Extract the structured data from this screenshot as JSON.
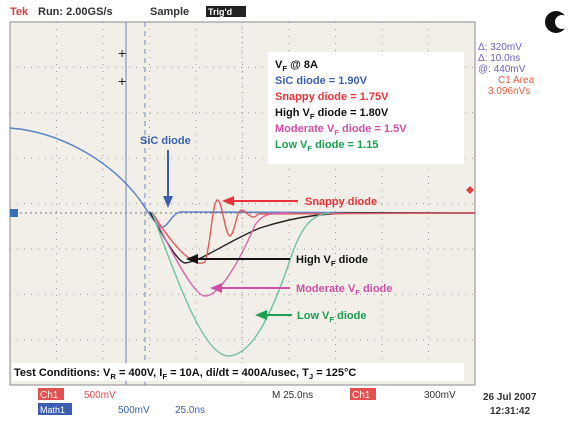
{
  "header": {
    "brand": "Tek",
    "run": "Run: 2.00GS/s",
    "mode": "Sample",
    "trigger": "Trig'd"
  },
  "readouts": [
    "Δ: 320mV",
    "Δ: 10.0ns",
    "@: 440mV",
    "C1 Area",
    "3.096nVs"
  ],
  "legend": {
    "heading": [
      "V",
      "F",
      " @ 8A"
    ],
    "lines": [
      [
        "SiC diode = 1.90V"
      ],
      [
        "Snappy diode = 1.75V"
      ],
      [
        "High V",
        "F",
        " diode = 1.80V"
      ],
      [
        "Moderate V",
        "F",
        " diode = 1.5V"
      ],
      [
        "Low V",
        "F",
        " diode = 1.15"
      ]
    ]
  },
  "labels": {
    "sic": [
      "SiC diode"
    ],
    "snappy": [
      "Snappy diode"
    ],
    "high": [
      "High V",
      "F",
      " diode"
    ],
    "moderate": [
      "Moderate V",
      "F",
      " diode"
    ],
    "low": [
      "Low V",
      "F",
      " diode"
    ]
  },
  "conditions": [
    "Test Conditions: V",
    "R",
    " = 400V, I",
    "F",
    " = 10A, di/dt = 400A/usec, T",
    "J",
    " = 125°C"
  ],
  "status": {
    "ch1": "Ch1",
    "ch1_scale": "500mV",
    "timebase": "M 25.0ns",
    "trig_src": "Ch1",
    "trig_level": "300mV",
    "date": "26 Jul 2007",
    "time": "12:31:42",
    "math": "Math1",
    "math_scale": "500mV",
    "math_time": "25.0ns"
  }
}
